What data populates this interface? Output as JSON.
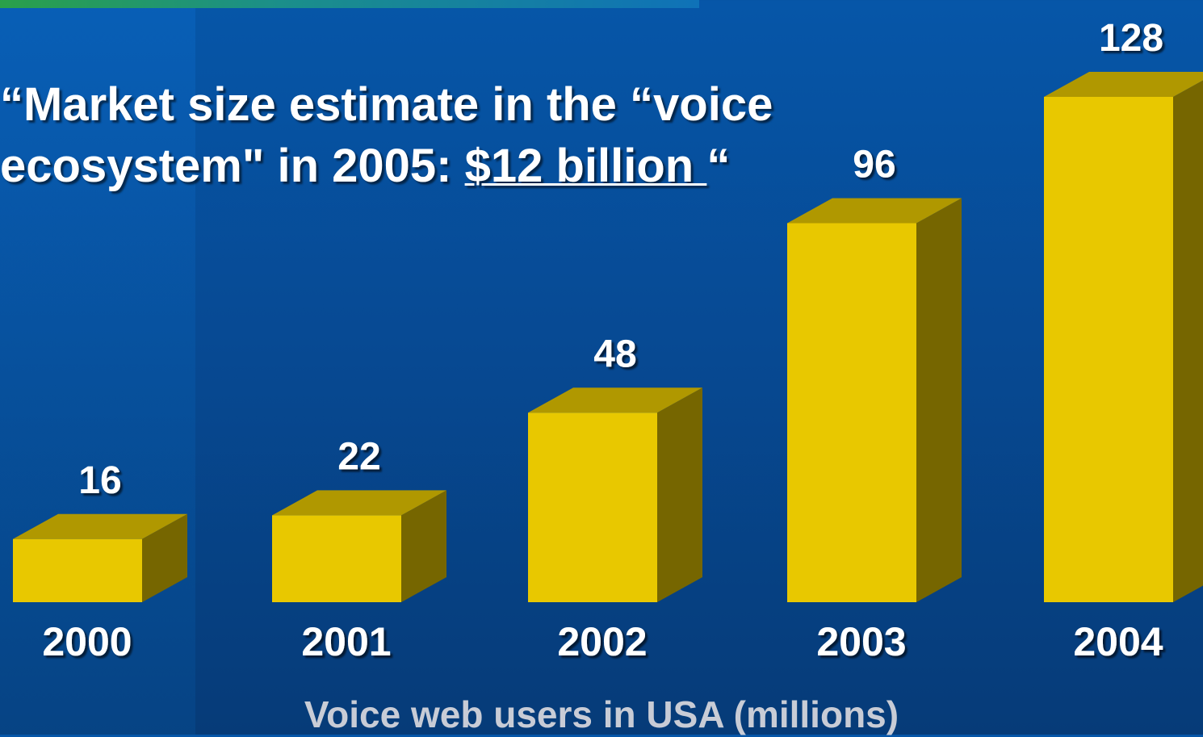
{
  "headline": {
    "line1": "“Market size estimate in the “voice",
    "line2_prefix": "ecosystem\" in 2005: ",
    "line2_amount": "$12 billion ",
    "line2_suffix": "“"
  },
  "chart_data": {
    "type": "bar",
    "categories": [
      "2000",
      "2001",
      "2002",
      "2003",
      "2004"
    ],
    "values": [
      16,
      22,
      48,
      96,
      128
    ],
    "data_labels": [
      "16",
      "22",
      "48",
      "96",
      "128"
    ],
    "xlabel": "Voice web users in USA (millions)",
    "ylabel": "",
    "grid": false,
    "three_d": true
  },
  "colors": {
    "bar_front": "#e8c800",
    "bar_top": "#b09800",
    "bar_side": "#766600",
    "label": "#ffffff",
    "xlabel": "#c8ccd6"
  }
}
